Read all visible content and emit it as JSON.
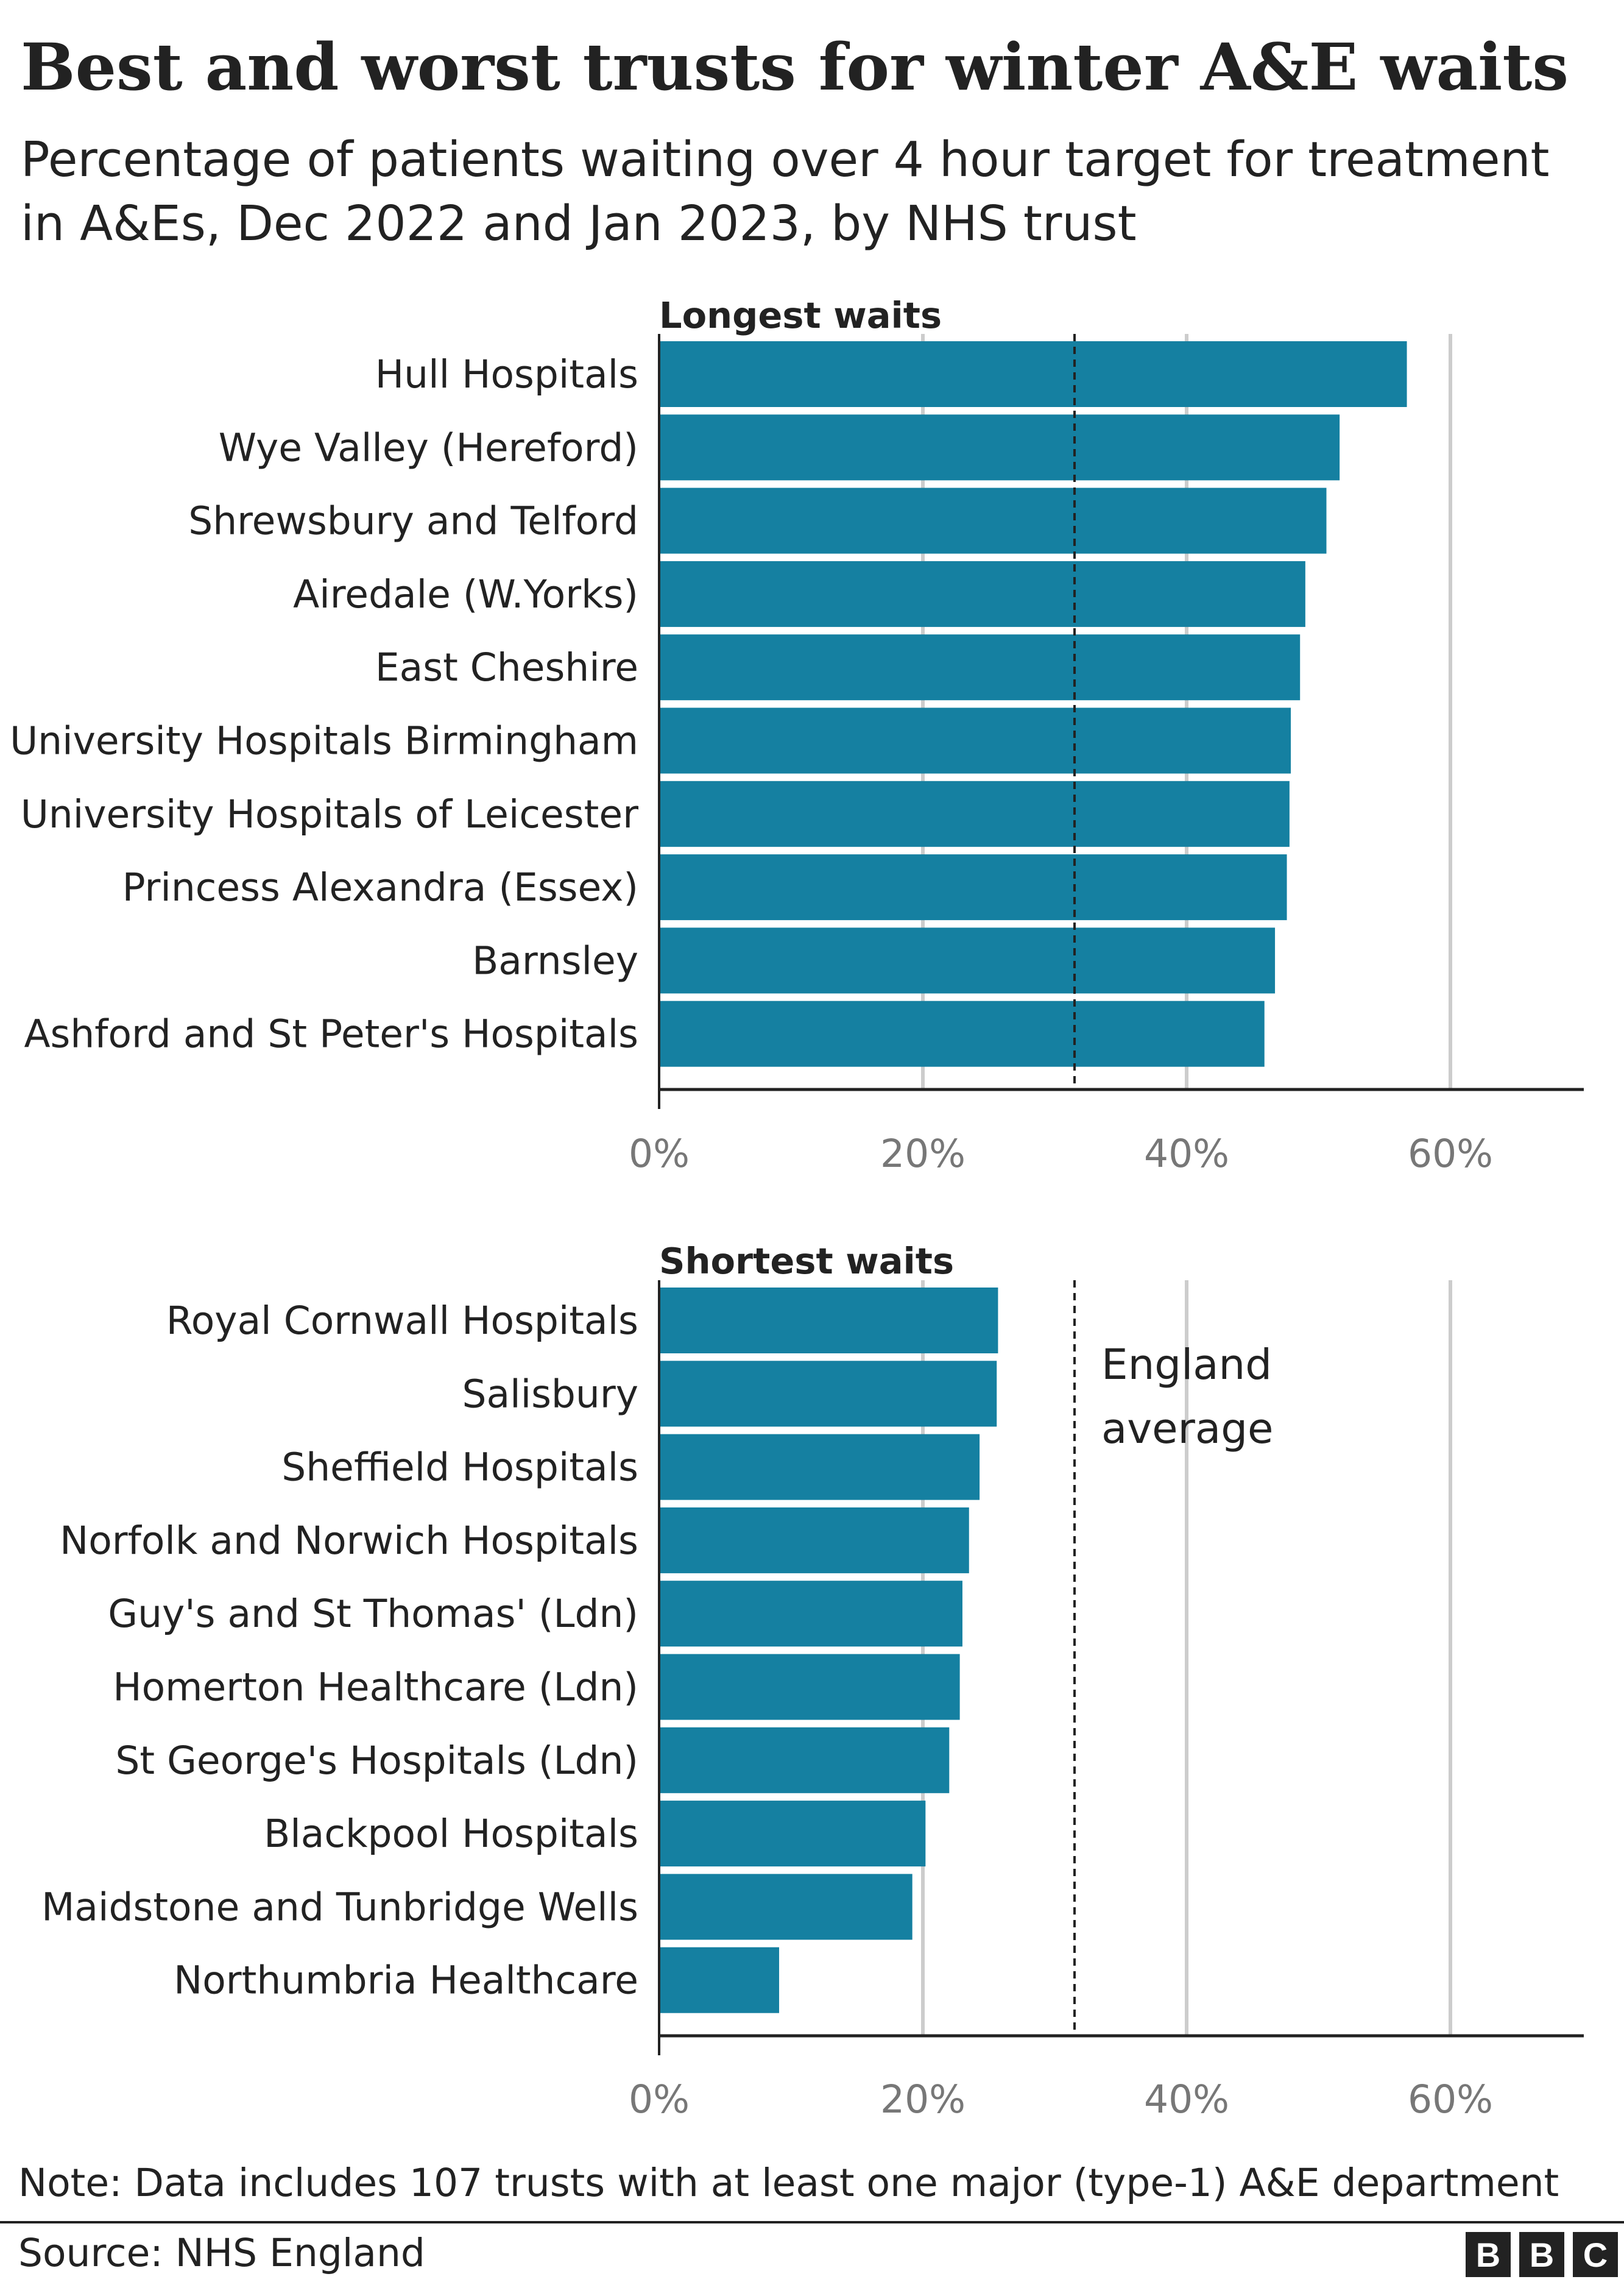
{
  "title": "Best and worst trusts for winter A&E waits",
  "subtitle": "Percentage of patients waiting over 4 hour target for treatment in A&Es, Dec 2022 and Jan 2023, by NHS trust",
  "note": "Note: Data includes 107 trusts with at least one major (type-1) A&E department",
  "source": "Source: NHS England",
  "logo": {
    "letters": [
      "B",
      "B",
      "C"
    ]
  },
  "colors": {
    "bar": "#1580a1",
    "axis": "#222222",
    "grid": "#cccccc",
    "reference_line": "#222222"
  },
  "chart_data": [
    {
      "type": "bar",
      "orientation": "horizontal",
      "title": "Longest waits",
      "categories": [
        "Hull Hospitals",
        "Wye Valley (Hereford)",
        "Shrewsbury and Telford",
        "Airedale (W.Yorks)",
        "East Cheshire",
        "University Hospitals Birmingham",
        "University Hospitals of Leicester",
        "Princess Alexandra (Essex)",
        "Barnsley",
        "Ashford and St Peter's Hospitals"
      ],
      "values": [
        56.7,
        51.6,
        50.6,
        49.0,
        48.6,
        47.9,
        47.8,
        47.6,
        46.7,
        45.9
      ],
      "xlim": [
        0,
        70
      ],
      "xticks": [
        0,
        20,
        40,
        60
      ],
      "xtick_labels": [
        "0%",
        "20%",
        "40%",
        "60%"
      ],
      "reference_line": {
        "value": 31.5,
        "label": ""
      },
      "grid": true
    },
    {
      "type": "bar",
      "orientation": "horizontal",
      "title": "Shortest waits",
      "categories": [
        "Royal Cornwall Hospitals",
        "Salisbury",
        "Sheffield Hospitals",
        "Norfolk and Norwich Hospitals",
        "Guy's and St Thomas' (Ldn)",
        "Homerton Healthcare (Ldn)",
        "St George's Hospitals (Ldn)",
        "Blackpool Hospitals",
        "Maidstone and Tunbridge Wells",
        "Northumbria Healthcare"
      ],
      "values": [
        25.7,
        25.6,
        24.3,
        23.5,
        23.0,
        22.8,
        22.0,
        20.2,
        19.2,
        9.1
      ],
      "xlim": [
        0,
        70
      ],
      "xticks": [
        0,
        20,
        40,
        60
      ],
      "xtick_labels": [
        "0%",
        "20%",
        "40%",
        "60%"
      ],
      "reference_line": {
        "value": 31.5,
        "label": [
          "England",
          "average"
        ]
      },
      "grid": true
    }
  ]
}
